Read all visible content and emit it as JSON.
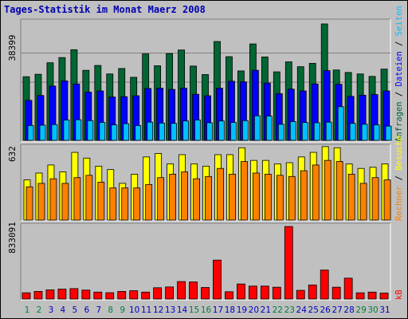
{
  "title": "Tages-Statistik im Monat Maerz 2008",
  "colors": {
    "anfragen": "#006633",
    "dateien": "#0000ff",
    "seiten": "#00c0ff",
    "besuche": "#ffff00",
    "rechner": "#ff8000",
    "kb": "#ff0000",
    "weekend_label": "#008040",
    "weekday_label": "#0000c0"
  },
  "chart_data": [
    {
      "type": "bar",
      "panel": "top",
      "max_label": "38399",
      "ylim": [
        0,
        38399
      ],
      "right_labels": [
        {
          "text": "Anfragen",
          "color": "#006633"
        },
        {
          "text": " / ",
          "color": "#000000"
        },
        {
          "text": "Dateien",
          "color": "#0000ff"
        },
        {
          "text": " / ",
          "color": "#000000"
        },
        {
          "text": "Seiten",
          "color": "#00c0ff"
        }
      ],
      "categories": [
        "1",
        "2",
        "3",
        "4",
        "5",
        "6",
        "7",
        "8",
        "9",
        "10",
        "11",
        "12",
        "13",
        "14",
        "15",
        "16",
        "17",
        "18",
        "19",
        "20",
        "21",
        "22",
        "23",
        "24",
        "25",
        "26",
        "27",
        "28",
        "29",
        "30",
        "31"
      ],
      "series": [
        {
          "name": "Anfragen",
          "values": [
            21000,
            21800,
            25600,
            27300,
            29900,
            23100,
            24700,
            21900,
            23700,
            20800,
            28500,
            24600,
            28600,
            29800,
            24500,
            21700,
            32600,
            27600,
            22900,
            31800,
            27500,
            22600,
            25900,
            24300,
            25400,
            38400,
            23200,
            22400,
            21900,
            21100,
            23500
          ]
        },
        {
          "name": "Dateien",
          "values": [
            13200,
            14800,
            17900,
            19600,
            18600,
            15900,
            16300,
            14300,
            14400,
            14700,
            17100,
            17200,
            16800,
            17200,
            15200,
            14700,
            17200,
            19500,
            19300,
            23100,
            18900,
            15400,
            16900,
            16300,
            18600,
            23000,
            18500,
            14500,
            14900,
            15100,
            16300
          ]
        },
        {
          "name": "Seiten",
          "values": [
            4900,
            5000,
            5200,
            6700,
            6800,
            6500,
            5900,
            5100,
            5500,
            4900,
            6000,
            5700,
            5600,
            6400,
            6700,
            5800,
            6400,
            5900,
            6500,
            8100,
            8000,
            5300,
            6200,
            5900,
            5800,
            6000,
            11100,
            5600,
            5300,
            5100,
            4700
          ]
        }
      ]
    },
    {
      "type": "bar",
      "panel": "middle",
      "max_label": "632",
      "ylim": [
        0,
        632
      ],
      "right_labels": [
        {
          "text": "Rechner",
          "color": "#ff8000"
        },
        {
          "text": " / ",
          "color": "#000000"
        },
        {
          "text": "Besuche",
          "color": "#ffff00"
        }
      ],
      "categories": [
        "1",
        "2",
        "3",
        "4",
        "5",
        "6",
        "7",
        "8",
        "9",
        "10",
        "11",
        "12",
        "13",
        "14",
        "15",
        "16",
        "17",
        "18",
        "19",
        "20",
        "21",
        "22",
        "23",
        "24",
        "25",
        "26",
        "27",
        "28",
        "29",
        "30",
        "31"
      ],
      "series": [
        {
          "name": "Besuche",
          "values": [
            350,
            410,
            480,
            420,
            590,
            540,
            470,
            440,
            320,
            400,
            550,
            580,
            490,
            570,
            490,
            470,
            570,
            570,
            630,
            520,
            520,
            490,
            500,
            550,
            590,
            640,
            630,
            490,
            450,
            460,
            490
          ]
        },
        {
          "name": "Rechner",
          "values": [
            290,
            320,
            360,
            320,
            370,
            390,
            330,
            280,
            280,
            280,
            310,
            370,
            400,
            420,
            360,
            380,
            450,
            400,
            510,
            410,
            400,
            390,
            380,
            430,
            480,
            520,
            510,
            400,
            320,
            370,
            350
          ]
        }
      ]
    },
    {
      "type": "bar",
      "panel": "bottom",
      "max_label": "833091",
      "ylim": [
        0,
        833091
      ],
      "right_labels": [
        {
          "text": "kB",
          "color": "#ff0000"
        }
      ],
      "categories": [
        "1",
        "2",
        "3",
        "4",
        "5",
        "6",
        "7",
        "8",
        "9",
        "10",
        "11",
        "12",
        "13",
        "14",
        "15",
        "16",
        "17",
        "18",
        "19",
        "20",
        "21",
        "22",
        "23",
        "24",
        "25",
        "26",
        "27",
        "28",
        "29",
        "30",
        "31"
      ],
      "series": [
        {
          "name": "kB",
          "values": [
            72000,
            88000,
            106000,
            115000,
            120000,
            103000,
            80000,
            73000,
            88000,
            96000,
            80000,
            130000,
            139000,
            201000,
            196000,
            133000,
            447000,
            84000,
            173000,
            149000,
            149000,
            136000,
            833000,
            100000,
            162000,
            333000,
            136000,
            240000,
            72000,
            80000,
            69000
          ]
        }
      ]
    }
  ],
  "x_labels": [
    {
      "text": "1",
      "weekend": true
    },
    {
      "text": "2",
      "weekend": true
    },
    {
      "text": "3",
      "weekend": false
    },
    {
      "text": "4",
      "weekend": false
    },
    {
      "text": "5",
      "weekend": false
    },
    {
      "text": "6",
      "weekend": false
    },
    {
      "text": "7",
      "weekend": false
    },
    {
      "text": "8",
      "weekend": true
    },
    {
      "text": "9",
      "weekend": true
    },
    {
      "text": "10",
      "weekend": false
    },
    {
      "text": "11",
      "weekend": false
    },
    {
      "text": "12",
      "weekend": false
    },
    {
      "text": "13",
      "weekend": false
    },
    {
      "text": "14",
      "weekend": false
    },
    {
      "text": "15",
      "weekend": true
    },
    {
      "text": "16",
      "weekend": true
    },
    {
      "text": "17",
      "weekend": false
    },
    {
      "text": "18",
      "weekend": false
    },
    {
      "text": "19",
      "weekend": false
    },
    {
      "text": "20",
      "weekend": false
    },
    {
      "text": "21",
      "weekend": false
    },
    {
      "text": "22",
      "weekend": true
    },
    {
      "text": "23",
      "weekend": true
    },
    {
      "text": "24",
      "weekend": false
    },
    {
      "text": "25",
      "weekend": false
    },
    {
      "text": "26",
      "weekend": false
    },
    {
      "text": "27",
      "weekend": false
    },
    {
      "text": "28",
      "weekend": false
    },
    {
      "text": "29",
      "weekend": true
    },
    {
      "text": "30",
      "weekend": true
    },
    {
      "text": "31",
      "weekend": false
    }
  ]
}
